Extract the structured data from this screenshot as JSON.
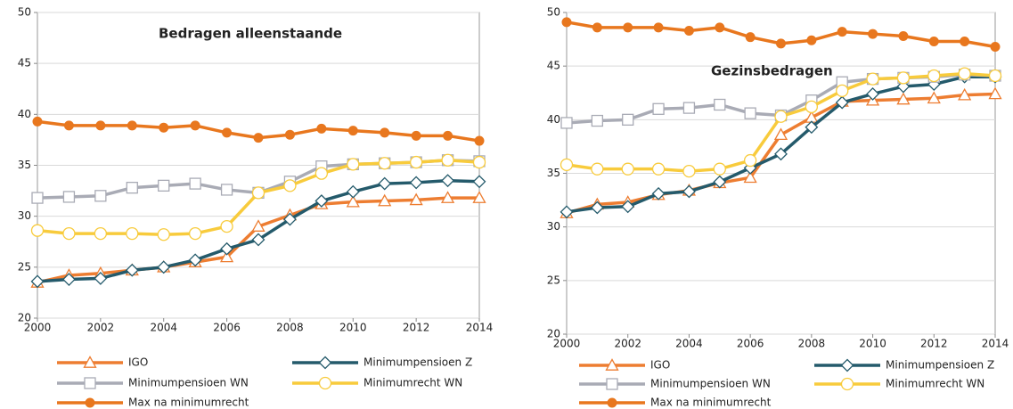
{
  "chart_data": [
    {
      "type": "line",
      "title": "Bedragen alleenstaande",
      "x": [
        2000,
        2001,
        2002,
        2003,
        2004,
        2005,
        2006,
        2007,
        2008,
        2009,
        2010,
        2011,
        2012,
        2013,
        2014
      ],
      "xlim": [
        2000,
        2014
      ],
      "xticks": [
        2000,
        2002,
        2004,
        2006,
        2008,
        2010,
        2012,
        2014
      ],
      "ylim": [
        20,
        50
      ],
      "yticks": [
        20,
        25,
        30,
        35,
        40,
        45,
        50
      ],
      "grid": true,
      "series": [
        {
          "name": "IGO",
          "color": "#ED7D31",
          "marker": "triangle",
          "values": [
            23.5,
            24.2,
            24.4,
            24.7,
            25.0,
            25.5,
            26.0,
            29.0,
            30.1,
            31.2,
            31.4,
            31.5,
            31.6,
            31.8,
            31.8
          ]
        },
        {
          "name": "Minimumpensioen Z",
          "color": "#245A6B",
          "marker": "diamond",
          "values": [
            23.6,
            23.8,
            23.9,
            24.7,
            25.0,
            25.7,
            26.8,
            27.7,
            29.7,
            31.5,
            32.4,
            33.2,
            33.3,
            33.5,
            33.4
          ]
        },
        {
          "name": "Minimumpensioen WN",
          "color": "#A9ABB5",
          "marker": "square",
          "values": [
            31.8,
            31.9,
            32.0,
            32.8,
            33.0,
            33.2,
            32.6,
            32.3,
            33.4,
            34.9,
            35.1,
            35.2,
            35.3,
            35.5,
            35.4
          ]
        },
        {
          "name": "Minimumrecht WN",
          "color": "#F8CB3C",
          "marker": "circle",
          "values": [
            28.6,
            28.3,
            28.3,
            28.3,
            28.2,
            28.3,
            29.0,
            32.3,
            33.0,
            34.2,
            35.1,
            35.2,
            35.3,
            35.5,
            35.3
          ]
        },
        {
          "name": "Max na minimumrecht",
          "color": "#E8771E",
          "marker": "dot",
          "values": [
            39.3,
            38.9,
            38.9,
            38.9,
            38.7,
            38.9,
            38.2,
            37.7,
            38.0,
            38.6,
            38.4,
            38.2,
            37.9,
            37.9,
            37.4
          ]
        }
      ]
    },
    {
      "type": "line",
      "title": "Gezinsbedragen",
      "x": [
        2000,
        2001,
        2002,
        2003,
        2004,
        2005,
        2006,
        2007,
        2008,
        2009,
        2010,
        2011,
        2012,
        2013,
        2014
      ],
      "xlim": [
        2000,
        2014
      ],
      "xticks": [
        2000,
        2002,
        2004,
        2006,
        2008,
        2010,
        2012,
        2014
      ],
      "ylim": [
        20,
        50
      ],
      "yticks": [
        20,
        25,
        30,
        35,
        40,
        45,
        50
      ],
      "grid": true,
      "series": [
        {
          "name": "IGO",
          "color": "#ED7D31",
          "marker": "triangle",
          "values": [
            31.3,
            32.1,
            32.3,
            33.0,
            33.4,
            34.1,
            34.6,
            38.6,
            40.2,
            41.7,
            41.8,
            41.9,
            42.0,
            42.3,
            42.4
          ]
        },
        {
          "name": "Minimumpensioen Z",
          "color": "#245A6B",
          "marker": "diamond",
          "values": [
            31.4,
            31.8,
            31.9,
            33.1,
            33.3,
            34.2,
            35.5,
            36.8,
            39.3,
            41.6,
            42.4,
            43.1,
            43.3,
            44.0,
            44.0
          ]
        },
        {
          "name": "Minimumpensioen WN",
          "color": "#A9ABB5",
          "marker": "square",
          "values": [
            39.7,
            39.9,
            40.0,
            41.0,
            41.1,
            41.4,
            40.6,
            40.4,
            41.8,
            43.5,
            43.8,
            43.9,
            44.0,
            44.2,
            44.1
          ]
        },
        {
          "name": "Minimumrecht WN",
          "color": "#F8CB3C",
          "marker": "circle",
          "values": [
            35.8,
            35.4,
            35.4,
            35.4,
            35.2,
            35.4,
            36.2,
            40.3,
            41.2,
            42.7,
            43.8,
            43.9,
            44.1,
            44.3,
            44.1
          ]
        },
        {
          "name": "Max na minimumrecht",
          "color": "#E8771E",
          "marker": "dot",
          "values": [
            49.1,
            48.6,
            48.6,
            48.6,
            48.3,
            48.6,
            47.7,
            47.1,
            47.4,
            48.2,
            48.0,
            47.8,
            47.3,
            47.3,
            46.8
          ]
        }
      ]
    }
  ]
}
